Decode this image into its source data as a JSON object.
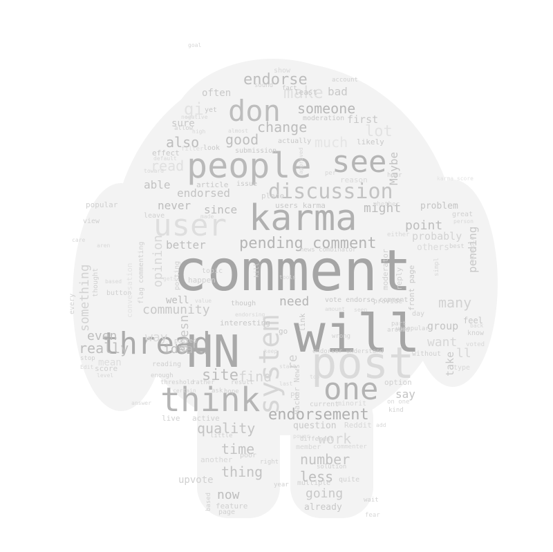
{
  "words": [
    {
      "id": "comment",
      "text": "comment",
      "color": "#a5a5a5"
    },
    {
      "id": "will",
      "text": "will",
      "color": "#a5a5a5"
    },
    {
      "id": "people",
      "text": "people",
      "color": "#b9b9b9"
    },
    {
      "id": "karma",
      "text": "karma",
      "color": "#b0b0b0"
    },
    {
      "id": "post",
      "text": "post",
      "color": "#dadada"
    },
    {
      "id": "user",
      "text": "user",
      "color": "#dedede"
    },
    {
      "id": "hn",
      "text": "HN",
      "color": "#a9a9a9"
    },
    {
      "id": "think",
      "text": "think",
      "color": "#b5b5b5"
    },
    {
      "id": "one",
      "text": "one",
      "color": "#b3b3b3"
    },
    {
      "id": "see",
      "text": "see",
      "color": "#b5b5b5"
    },
    {
      "id": "don",
      "text": "don",
      "color": "#bdbdbd"
    },
    {
      "id": "thread",
      "text": "thread",
      "color": "#ababab"
    },
    {
      "id": "system",
      "text": "system",
      "color": "#d6d6d6"
    },
    {
      "id": "discussion",
      "text": "discussion",
      "color": "#c3c3c3"
    },
    {
      "id": "pending_comment",
      "text": "pending comment",
      "color": "#b5b5b5"
    },
    {
      "id": "endorsement",
      "text": "endorsement",
      "color": "#b0b0b0"
    },
    {
      "id": "endorse",
      "text": "endorse",
      "color": "#bdbdbd"
    },
    {
      "id": "make",
      "text": "make",
      "color": "#e0e0e0"
    },
    {
      "id": "someone",
      "text": "someone",
      "color": "#b8b8b8"
    },
    {
      "id": "change",
      "text": "change",
      "color": "#bdbdbd"
    },
    {
      "id": "good",
      "text": "good",
      "color": "#bfbfbf"
    },
    {
      "id": "also",
      "text": "also",
      "color": "#bdbdbd"
    },
    {
      "id": "read",
      "text": "read",
      "color": "#e0e0e0"
    },
    {
      "id": "able",
      "text": "able",
      "color": "#c2c2c2"
    },
    {
      "id": "endorsed",
      "text": "endorsed",
      "color": "#c3c3c3"
    },
    {
      "id": "never",
      "text": "never",
      "color": "#bdbdbd"
    },
    {
      "id": "since",
      "text": "since",
      "color": "#bdbdbd"
    },
    {
      "id": "might",
      "text": "might",
      "color": "#bdbdbd"
    },
    {
      "id": "point",
      "text": "point",
      "color": "#bdbdbd"
    },
    {
      "id": "problem",
      "text": "problem",
      "color": "#c3c3c3"
    },
    {
      "id": "probably",
      "text": "probably",
      "color": "#d2d2d2"
    },
    {
      "id": "pending",
      "text": "pending",
      "color": "#c8c8c8"
    },
    {
      "id": "many",
      "text": "many",
      "color": "#d2d2d2"
    },
    {
      "id": "better",
      "text": "better",
      "color": "#bdbdbd"
    },
    {
      "id": "opinion",
      "text": "opinion",
      "color": "#d7d7d7"
    },
    {
      "id": "community",
      "text": "community",
      "color": "#c8c8c8"
    },
    {
      "id": "well",
      "text": "well",
      "color": "#bdbdbd"
    },
    {
      "id": "doesn",
      "text": "doesn",
      "color": "#c8c8c8"
    },
    {
      "id": "need",
      "text": "need",
      "color": "#b5b5b5"
    },
    {
      "id": "even",
      "text": "even",
      "color": "#bdbdbd"
    },
    {
      "id": "way",
      "text": "way",
      "color": "#dadada"
    },
    {
      "id": "really",
      "text": "really",
      "color": "#bdbdbd"
    },
    {
      "id": "idea",
      "text": "idea",
      "color": "#bdbdbd"
    },
    {
      "id": "site",
      "text": "site",
      "color": "#bdbdbd"
    },
    {
      "id": "find",
      "text": "find",
      "color": "#d5d5d5"
    },
    {
      "id": "time",
      "text": "time",
      "color": "#c3c3c3"
    },
    {
      "id": "quality",
      "text": "quality",
      "color": "#c3c3c3"
    },
    {
      "id": "thing",
      "text": "thing",
      "color": "#c3c3c3"
    },
    {
      "id": "now",
      "text": "now",
      "color": "#bdbdbd"
    },
    {
      "id": "work",
      "text": "work",
      "color": "#d7d7d7"
    },
    {
      "id": "number",
      "text": "number",
      "color": "#c3c3c3"
    },
    {
      "id": "less",
      "text": "less",
      "color": "#bdbdbd"
    },
    {
      "id": "going",
      "text": "going",
      "color": "#c8c8c8"
    },
    {
      "id": "want",
      "text": "want",
      "color": "#d7d7d7"
    },
    {
      "id": "ll",
      "text": "ll",
      "color": "#d7d7d7"
    },
    {
      "id": "group",
      "text": "group",
      "color": "#c3c3c3"
    },
    {
      "id": "maybe",
      "text": "Maybe",
      "color": "#c3c3c3"
    },
    {
      "id": "something",
      "text": "something",
      "color": "#d2d2d2"
    },
    {
      "id": "re",
      "text": "re",
      "color": "#d0d0d0"
    },
    {
      "id": "say",
      "text": "say",
      "color": "#c3c3c3"
    },
    {
      "id": "take",
      "text": "take",
      "color": "#c8c8c8"
    },
    {
      "id": "first",
      "text": "first",
      "color": "#c8c8c8"
    },
    {
      "id": "bad",
      "text": "bad",
      "color": "#c8c8c8"
    },
    {
      "id": "often",
      "text": "often",
      "color": "#c8c8c8"
    },
    {
      "id": "sure",
      "text": "sure",
      "color": "#c8c8c8"
    },
    {
      "id": "upvote",
      "text": "upvote",
      "color": "#d0d0d0"
    },
    {
      "id": "question",
      "text": "question",
      "color": "#c8c8c8"
    },
    {
      "id": "lot",
      "text": "lot",
      "color": "#e2e2e2"
    },
    {
      "id": "much",
      "text": "much",
      "color": "#e5e5e5"
    },
    {
      "id": "already",
      "text": "already",
      "color": "#c8c8c8"
    },
    {
      "id": "mean",
      "text": "mean",
      "color": "#dddddd"
    },
    {
      "id": "feel",
      "text": "feel",
      "color": "#c8c8c8"
    },
    {
      "id": "users_karma",
      "text": "users karma",
      "color": "#c8c8c8"
    },
    {
      "id": "vote_endorse_comment",
      "text": "vote endorse comment",
      "color": "#c8c8c8"
    },
    {
      "id": "front_page",
      "text": "front page",
      "color": "#c8c8c8"
    },
    {
      "id": "interesting",
      "text": "interesting",
      "color": "#c8c8c8"
    },
    {
      "id": "though",
      "text": "though",
      "color": "#c8c8c8"
    },
    {
      "id": "article",
      "text": "article",
      "color": "#c8c8c8"
    },
    {
      "id": "issue",
      "text": "issue",
      "color": "#c8c8c8"
    },
    {
      "id": "effect",
      "text": "effect",
      "color": "#c8c8c8"
    },
    {
      "id": "look",
      "text": "look",
      "color": "#c8c8c8"
    },
    {
      "id": "submission",
      "text": "submission",
      "color": "#c8c8c8"
    },
    {
      "id": "actually",
      "text": "actually",
      "color": "#c8c8c8"
    },
    {
      "id": "likely",
      "text": "likely",
      "color": "#c8c8c8"
    },
    {
      "id": "moderation",
      "text": "moderation",
      "color": "#c8c8c8"
    },
    {
      "id": "yet",
      "text": "yet",
      "color": "#c8c8c8"
    },
    {
      "id": "least",
      "text": "least",
      "color": "#c8c8c8"
    },
    {
      "id": "fact",
      "text": "fact",
      "color": "#c8c8c8"
    },
    {
      "id": "account",
      "text": "account",
      "color": "#d0d0d0"
    },
    {
      "id": "show",
      "text": "show",
      "color": "#d7d7d7"
    },
    {
      "id": "sound",
      "text": "sound",
      "color": "#d0d0d0"
    },
    {
      "id": "allow",
      "text": "allow",
      "color": "#d0d0d0"
    },
    {
      "id": "leave",
      "text": "leave",
      "color": "#d0d0d0"
    },
    {
      "id": "view",
      "text": "view",
      "color": "#d0d0d0"
    },
    {
      "id": "popular",
      "text": "popular",
      "color": "#d0d0d0"
    },
    {
      "id": "topic",
      "text": "topic",
      "color": "#d0d0d0"
    },
    {
      "id": "happen",
      "text": "happen",
      "color": "#d0d0d0"
    },
    {
      "id": "posting",
      "text": "posting",
      "color": "#d0d0d0"
    },
    {
      "id": "place",
      "text": "place",
      "color": "#d0d0d0"
    },
    {
      "id": "reason",
      "text": "reason",
      "color": "#dadada"
    },
    {
      "id": "hour",
      "text": "hour",
      "color": "#d0d0d0"
    },
    {
      "id": "whether",
      "text": "whether",
      "color": "#d7d7d7"
    },
    {
      "id": "great",
      "text": "great",
      "color": "#d0d0d0"
    },
    {
      "id": "others",
      "text": "others",
      "color": "#dadada"
    },
    {
      "id": "best",
      "text": "best",
      "color": "#d0d0d0"
    },
    {
      "id": "example",
      "text": "example",
      "color": "#d7d7d7"
    },
    {
      "id": "news_combinator",
      "text": "news combinator",
      "color": "#d0d0d0"
    },
    {
      "id": "moderator",
      "text": "moderator",
      "color": "#d0d0d0"
    },
    {
      "id": "either",
      "text": "either",
      "color": "#d7d7d7"
    },
    {
      "id": "reply",
      "text": "reply",
      "color": "#d0d0d0"
    },
    {
      "id": "provide",
      "text": "provide",
      "color": "#d0d0d0"
    },
    {
      "id": "unpopular",
      "text": "unpopular",
      "color": "#d0d0d0"
    },
    {
      "id": "around",
      "text": "around",
      "color": "#d0d0d0"
    },
    {
      "id": "without",
      "text": "without",
      "color": "#d0d0d0"
    },
    {
      "id": "wrong",
      "text": "wrong",
      "color": "#d0d0d0"
    },
    {
      "id": "part",
      "text": "part",
      "color": "#d0d0d0"
    },
    {
      "id": "day",
      "text": "day",
      "color": "#d0d0d0"
    },
    {
      "id": "know",
      "text": "know",
      "color": "#d0d0d0"
    },
    {
      "id": "voted",
      "text": "voted",
      "color": "#d7d7d7"
    },
    {
      "id": "type",
      "text": "type",
      "color": "#d7d7d7"
    },
    {
      "id": "endorser_understand",
      "text": "endorser understand",
      "color": "#d0d0d0"
    },
    {
      "id": "hacker_news",
      "text": "Hacker News",
      "color": "#d0d0d0"
    },
    {
      "id": "link",
      "text": "link",
      "color": "#c8c8c8"
    },
    {
      "id": "kill",
      "text": "kill",
      "color": "#d0d0d0"
    },
    {
      "id": "go",
      "text": "go",
      "color": "#c8c8c8"
    },
    {
      "id": "option",
      "text": "option",
      "color": "#d0d0d0"
    },
    {
      "id": "current",
      "text": "current",
      "color": "#d0d0d0"
    },
    {
      "id": "different",
      "text": "different",
      "color": "#d0d0d0"
    },
    {
      "id": "reddit",
      "text": "Reddit",
      "color": "#d7d7d7"
    },
    {
      "id": "kind",
      "text": "kind",
      "color": "#d0d0d0"
    },
    {
      "id": "minority",
      "text": "minorit",
      "color": "#d7d7d7"
    },
    {
      "id": "solution",
      "text": "solution",
      "color": "#d0d0d0"
    },
    {
      "id": "multiple",
      "text": "multiple",
      "color": "#d0d0d0"
    },
    {
      "id": "quite",
      "text": "quite",
      "color": "#d0d0d0"
    },
    {
      "id": "wait",
      "text": "wait",
      "color": "#d0d0d0"
    },
    {
      "id": "fear",
      "text": "fear",
      "color": "#d7d7d7"
    },
    {
      "id": "member",
      "text": "member",
      "color": "#d7d7d7"
    },
    {
      "id": "commenter",
      "text": "commenter",
      "color": "#d7d7d7"
    },
    {
      "id": "year",
      "text": "year",
      "color": "#d0d0d0"
    },
    {
      "id": "score",
      "text": "score",
      "color": "#d0d0d0"
    },
    {
      "id": "stop",
      "text": "stop",
      "color": "#d0d0d0"
    },
    {
      "id": "every",
      "text": "every",
      "color": "#d0d0d0"
    },
    {
      "id": "thought",
      "text": "thought",
      "color": "#d0d0d0"
    },
    {
      "id": "button",
      "text": "button",
      "color": "#d0d0d0"
    },
    {
      "id": "flag_commenting",
      "text": "flag commenting",
      "color": "#d0d0d0"
    },
    {
      "id": "posted",
      "text": "posted",
      "color": "#d0d0d0"
    },
    {
      "id": "reading",
      "text": "reading",
      "color": "#d0d0d0"
    },
    {
      "id": "threshold",
      "text": "threshold",
      "color": "#d0d0d0"
    },
    {
      "id": "rather",
      "text": "rather",
      "color": "#d0d0d0"
    },
    {
      "id": "result",
      "text": "result",
      "color": "#d0d0d0"
    },
    {
      "id": "enough",
      "text": "enough",
      "color": "#d0d0d0"
    },
    {
      "id": "hope",
      "text": "hope",
      "color": "#d0d0d0"
    },
    {
      "id": "ask",
      "text": "ask",
      "color": "#d0d0d0"
    },
    {
      "id": "live",
      "text": "live",
      "color": "#d0d0d0"
    },
    {
      "id": "active",
      "text": "active",
      "color": "#d0d0d0"
    },
    {
      "id": "little",
      "text": "little",
      "color": "#d0d0d0"
    },
    {
      "id": "another",
      "text": "another",
      "color": "#d7d7d7"
    },
    {
      "id": "poor",
      "text": "poor",
      "color": "#d0d0d0"
    },
    {
      "id": "right",
      "text": "right",
      "color": "#d0d0d0"
    },
    {
      "id": "based",
      "text": "based",
      "color": "#d0d0d0"
    },
    {
      "id": "feature",
      "text": "feature",
      "color": "#d0d0d0"
    },
    {
      "id": "page",
      "text": "page",
      "color": "#d0d0d0"
    },
    {
      "id": "toward",
      "text": "toward",
      "color": "#d7d7d7"
    },
    {
      "id": "default",
      "text": "default",
      "color": "#d7d7d7"
    },
    {
      "id": "goal",
      "text": "goal",
      "color": "#d7d7d7"
    },
    {
      "id": "almost",
      "text": "almost",
      "color": "#d7d7d7"
    },
    {
      "id": "filter",
      "text": "filter",
      "color": "#dddddd"
    },
    {
      "id": "high",
      "text": "high",
      "color": "#d7d7d7"
    },
    {
      "id": "person",
      "text": "person",
      "color": "#d7d7d7"
    },
    {
      "id": "approved",
      "text": "approved",
      "color": "#d7d7d7"
    },
    {
      "id": "per",
      "text": "per",
      "color": "#d7d7d7"
    },
    {
      "id": "care",
      "text": "care",
      "color": "#d7d7d7"
    },
    {
      "id": "aren",
      "text": "aren",
      "color": "#d7d7d7"
    },
    {
      "id": "made",
      "text": "made",
      "color": "#d7d7d7"
    },
    {
      "id": "gets",
      "text": "gets",
      "color": "#dddddd"
    },
    {
      "id": "endorsing",
      "text": "endorsing",
      "color": "#d7d7d7"
    },
    {
      "id": "keep",
      "text": "keep",
      "color": "#d7d7d7"
    },
    {
      "id": "start",
      "text": "start",
      "color": "#d7d7d7"
    },
    {
      "id": "last",
      "text": "last",
      "color": "#d7d7d7"
    },
    {
      "id": "seen",
      "text": "seen",
      "color": "#d7d7d7"
    },
    {
      "id": "amount",
      "text": "amount",
      "color": "#d7d7d7"
    },
    {
      "id": "value",
      "text": "value",
      "color": "#d7d7d7"
    },
    {
      "id": "level",
      "text": "level",
      "color": "#d7d7d7"
    },
    {
      "id": "edit",
      "text": "Edit",
      "color": "#d7d7d7"
    },
    {
      "id": "certain",
      "text": "certain",
      "color": "#d7d7d7"
    },
    {
      "id": "back",
      "text": "back",
      "color": "#d7d7d7"
    },
    {
      "id": "top",
      "text": "top",
      "color": "#d7d7d7"
    },
    {
      "id": "tools",
      "text": "tools",
      "color": "#d7d7d7"
    },
    {
      "id": "power",
      "text": "power",
      "color": "#d7d7d7"
    },
    {
      "id": "simple",
      "text": "simpl",
      "color": "#d7d7d7"
    },
    {
      "id": "add",
      "text": "add",
      "color": "#d7d7d7"
    },
    {
      "id": "pc",
      "text": "PG",
      "color": "#d7d7d7"
    },
    {
      "id": "conversation",
      "text": "conversation",
      "color": "#e2e2e2"
    },
    {
      "id": "answer",
      "text": "answer",
      "color": "#d7d7d7"
    },
    {
      "id": "negative",
      "text": "negative",
      "color": "#d7d7d7"
    },
    {
      "id": "based_off",
      "text": "based",
      "color": "#d7d7d7"
    },
    {
      "id": "oh",
      "text": "on one",
      "color": "#d7d7d7"
    },
    {
      "id": "karma_score",
      "text": "karma score",
      "color": "#e2e2e2"
    },
    {
      "id": "lol",
      "text": "gi",
      "color": "#e2e2e2"
    }
  ]
}
